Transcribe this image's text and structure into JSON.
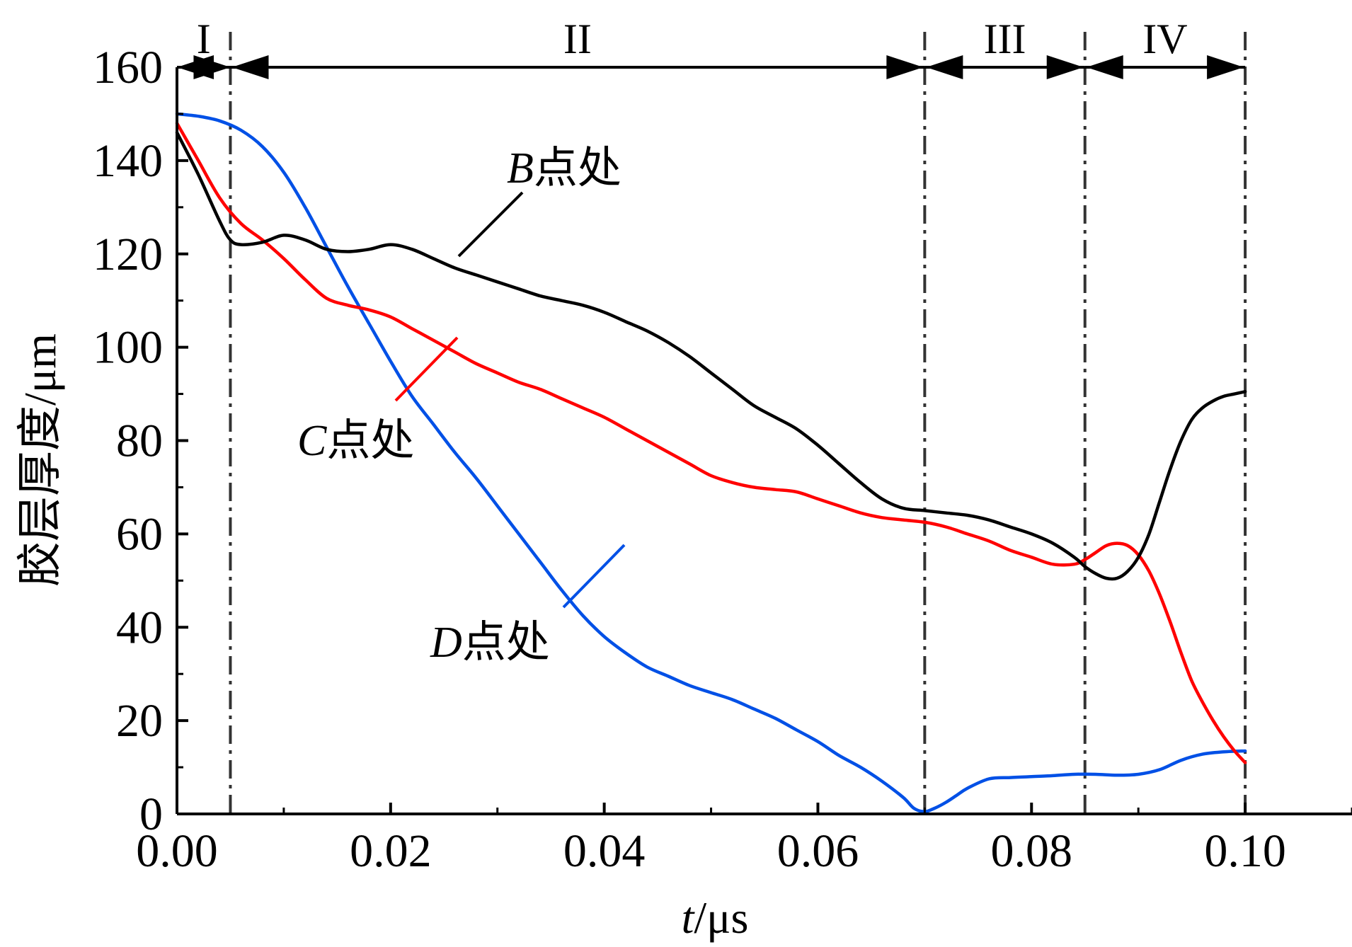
{
  "chart_data": {
    "type": "line",
    "xlabel": {
      "var": "t",
      "unit": "/μs"
    },
    "ylabel": "胶层厚度/μm",
    "xlim": [
      0.0,
      0.11
    ],
    "ylim": [
      0,
      160
    ],
    "xticks": [
      0.0,
      0.02,
      0.04,
      0.06,
      0.08,
      0.1
    ],
    "xtick_labels": [
      "0.00",
      "0.02",
      "0.04",
      "0.06",
      "0.08",
      "0.10"
    ],
    "yticks": [
      0,
      20,
      40,
      60,
      80,
      100,
      120,
      140,
      160
    ],
    "ytick_labels": [
      "0",
      "20",
      "40",
      "60",
      "80",
      "100",
      "120",
      "140",
      "160"
    ],
    "grid": false,
    "legend": "none",
    "series": [
      {
        "name": "B点处",
        "label_var": "B",
        "label_text": "点处",
        "color": "#000000",
        "x": [
          0.0,
          0.002,
          0.004,
          0.005,
          0.006,
          0.008,
          0.01,
          0.012,
          0.014,
          0.016,
          0.018,
          0.02,
          0.022,
          0.024,
          0.026,
          0.028,
          0.03,
          0.032,
          0.034,
          0.036,
          0.038,
          0.04,
          0.042,
          0.044,
          0.046,
          0.048,
          0.05,
          0.052,
          0.054,
          0.056,
          0.058,
          0.06,
          0.062,
          0.064,
          0.066,
          0.068,
          0.07,
          0.072,
          0.074,
          0.076,
          0.078,
          0.08,
          0.082,
          0.084,
          0.085,
          0.086,
          0.087,
          0.088,
          0.089,
          0.09,
          0.091,
          0.092,
          0.093,
          0.094,
          0.095,
          0.096,
          0.097,
          0.098,
          0.099,
          0.1
        ],
        "y": [
          146,
          137,
          127,
          123,
          122,
          122.5,
          124,
          123,
          121,
          120.5,
          121,
          122,
          121,
          119,
          117,
          115.5,
          114,
          112.5,
          111,
          110,
          109,
          107.5,
          105.5,
          103.5,
          101,
          98,
          94.5,
          91,
          87.5,
          85,
          82.5,
          79,
          75,
          71,
          67.5,
          65.5,
          65,
          64.5,
          64,
          63,
          61.5,
          60,
          58,
          55,
          53,
          51.5,
          50.5,
          50.5,
          52,
          55,
          60,
          67,
          74,
          80,
          84.5,
          87,
          88.5,
          89.5,
          90,
          90.5
        ]
      },
      {
        "name": "C点处",
        "label_var": "C",
        "label_text": "点处",
        "color": "#ff0000",
        "x": [
          0.0,
          0.002,
          0.004,
          0.006,
          0.008,
          0.01,
          0.012,
          0.014,
          0.016,
          0.018,
          0.02,
          0.022,
          0.024,
          0.026,
          0.028,
          0.03,
          0.032,
          0.034,
          0.036,
          0.038,
          0.04,
          0.042,
          0.044,
          0.046,
          0.048,
          0.05,
          0.052,
          0.054,
          0.056,
          0.058,
          0.06,
          0.062,
          0.064,
          0.066,
          0.068,
          0.07,
          0.072,
          0.074,
          0.076,
          0.078,
          0.08,
          0.082,
          0.084,
          0.085,
          0.086,
          0.087,
          0.088,
          0.089,
          0.09,
          0.091,
          0.092,
          0.093,
          0.094,
          0.095,
          0.096,
          0.097,
          0.098,
          0.099,
          0.1
        ],
        "y": [
          148,
          140,
          132,
          126.5,
          123,
          119,
          114.5,
          110.5,
          109,
          108,
          106.5,
          104,
          101.5,
          99,
          96.5,
          94.5,
          92.5,
          91,
          89,
          87,
          85,
          82.5,
          80,
          77.5,
          75,
          72.5,
          71,
          70,
          69.5,
          69,
          67.5,
          66,
          64.5,
          63.5,
          63,
          62.5,
          61.5,
          60,
          58.5,
          56.5,
          55,
          53.5,
          53.5,
          54.5,
          56,
          57.5,
          58,
          57.5,
          55.5,
          52,
          47,
          41,
          34.5,
          28.5,
          24,
          20,
          16.5,
          13.5,
          11
        ]
      },
      {
        "name": "D点处",
        "label_var": "D",
        "label_text": "点处",
        "color": "#0050e6",
        "x": [
          0.0,
          0.002,
          0.004,
          0.006,
          0.008,
          0.01,
          0.012,
          0.014,
          0.016,
          0.018,
          0.02,
          0.022,
          0.024,
          0.026,
          0.028,
          0.03,
          0.032,
          0.034,
          0.036,
          0.038,
          0.04,
          0.042,
          0.044,
          0.046,
          0.048,
          0.05,
          0.052,
          0.054,
          0.056,
          0.058,
          0.06,
          0.062,
          0.064,
          0.066,
          0.068,
          0.069,
          0.07,
          0.071,
          0.072,
          0.073,
          0.074,
          0.076,
          0.078,
          0.08,
          0.082,
          0.084,
          0.086,
          0.088,
          0.09,
          0.092,
          0.094,
          0.096,
          0.098,
          0.1
        ],
        "y": [
          150,
          149.5,
          148.5,
          146.5,
          143,
          137.5,
          130,
          121.5,
          113,
          105,
          97,
          89.5,
          83.5,
          77.5,
          72,
          66,
          60,
          54,
          48,
          42.5,
          38,
          34.5,
          31.5,
          29.5,
          27.5,
          26,
          24.5,
          22.5,
          20.5,
          18,
          15.5,
          12.5,
          10,
          7,
          3.5,
          1.2,
          0.5,
          1.3,
          2.5,
          4,
          5.5,
          7.5,
          7.8,
          8,
          8.2,
          8.5,
          8.5,
          8.3,
          8.5,
          9.5,
          11.5,
          12.8,
          13.3,
          13.5
        ]
      }
    ],
    "boundaries": [
      0.005,
      0.07,
      0.085,
      0.1
    ],
    "regions": [
      {
        "label": "I",
        "from": 0.0,
        "to": 0.005
      },
      {
        "label": "II",
        "from": 0.005,
        "to": 0.07
      },
      {
        "label": "III",
        "from": 0.07,
        "to": 0.085
      },
      {
        "label": "IV",
        "from": 0.085,
        "to": 0.1
      }
    ],
    "annotations": [
      {
        "series": "B点处",
        "var": "B",
        "text": "点处"
      },
      {
        "series": "C点处",
        "var": "C",
        "text": "点处"
      },
      {
        "series": "D点处",
        "var": "D",
        "text": "点处"
      }
    ]
  }
}
